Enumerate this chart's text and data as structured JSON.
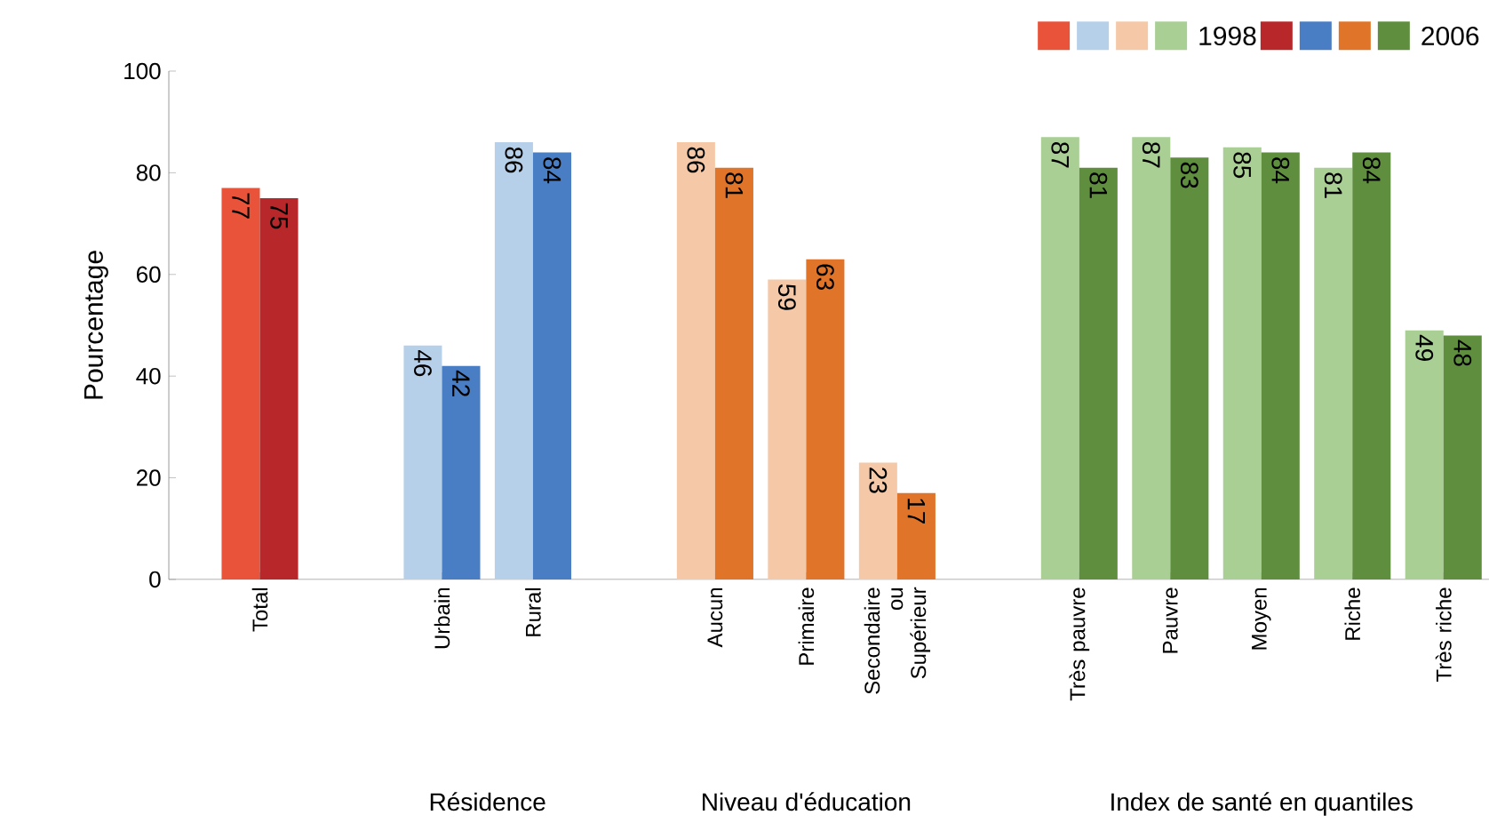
{
  "chart_data": {
    "type": "bar",
    "ylabel": "Pourcentage",
    "categories": [
      "Total",
      null,
      "Urbain",
      "Rural",
      null,
      "Aucun",
      "Primaire",
      "Secondaire ou Supérieur",
      null,
      "Très pauvre",
      "Pauvre",
      "Moyen",
      "Riche",
      "Très riche"
    ],
    "series": [
      {
        "name": "1998",
        "values": [
          77,
          null,
          46,
          86,
          null,
          86,
          59,
          23,
          null,
          87,
          87,
          85,
          81,
          49
        ],
        "colors": [
          "#e8533a",
          null,
          "#b7d0ea",
          "#b7d0ea",
          null,
          "#f5c9a8",
          "#f5c9a8",
          "#f5c9a8",
          null,
          "#a9cf94",
          "#a9cf94",
          "#a9cf94",
          "#a9cf94",
          "#a9cf94"
        ]
      },
      {
        "name": "2006",
        "values": [
          75,
          null,
          42,
          84,
          null,
          81,
          63,
          17,
          null,
          81,
          83,
          84,
          84,
          48
        ],
        "colors": [
          "#b8282a",
          null,
          "#4a7ec4",
          "#4a7ec4",
          null,
          "#e07428",
          "#e07428",
          "#e07428",
          null,
          "#5f8f3e",
          "#5f8f3e",
          "#5f8f3e",
          "#5f8f3e",
          "#5f8f3e"
        ]
      }
    ],
    "ylim": [
      0,
      100
    ],
    "yticks": [
      0,
      20,
      40,
      60,
      80,
      100
    ],
    "data_labels": true,
    "legend": "top right",
    "grid": false,
    "annotations": [
      "Résidence",
      "Niveau d'éducation",
      "Index de santé en quantiles"
    ]
  }
}
